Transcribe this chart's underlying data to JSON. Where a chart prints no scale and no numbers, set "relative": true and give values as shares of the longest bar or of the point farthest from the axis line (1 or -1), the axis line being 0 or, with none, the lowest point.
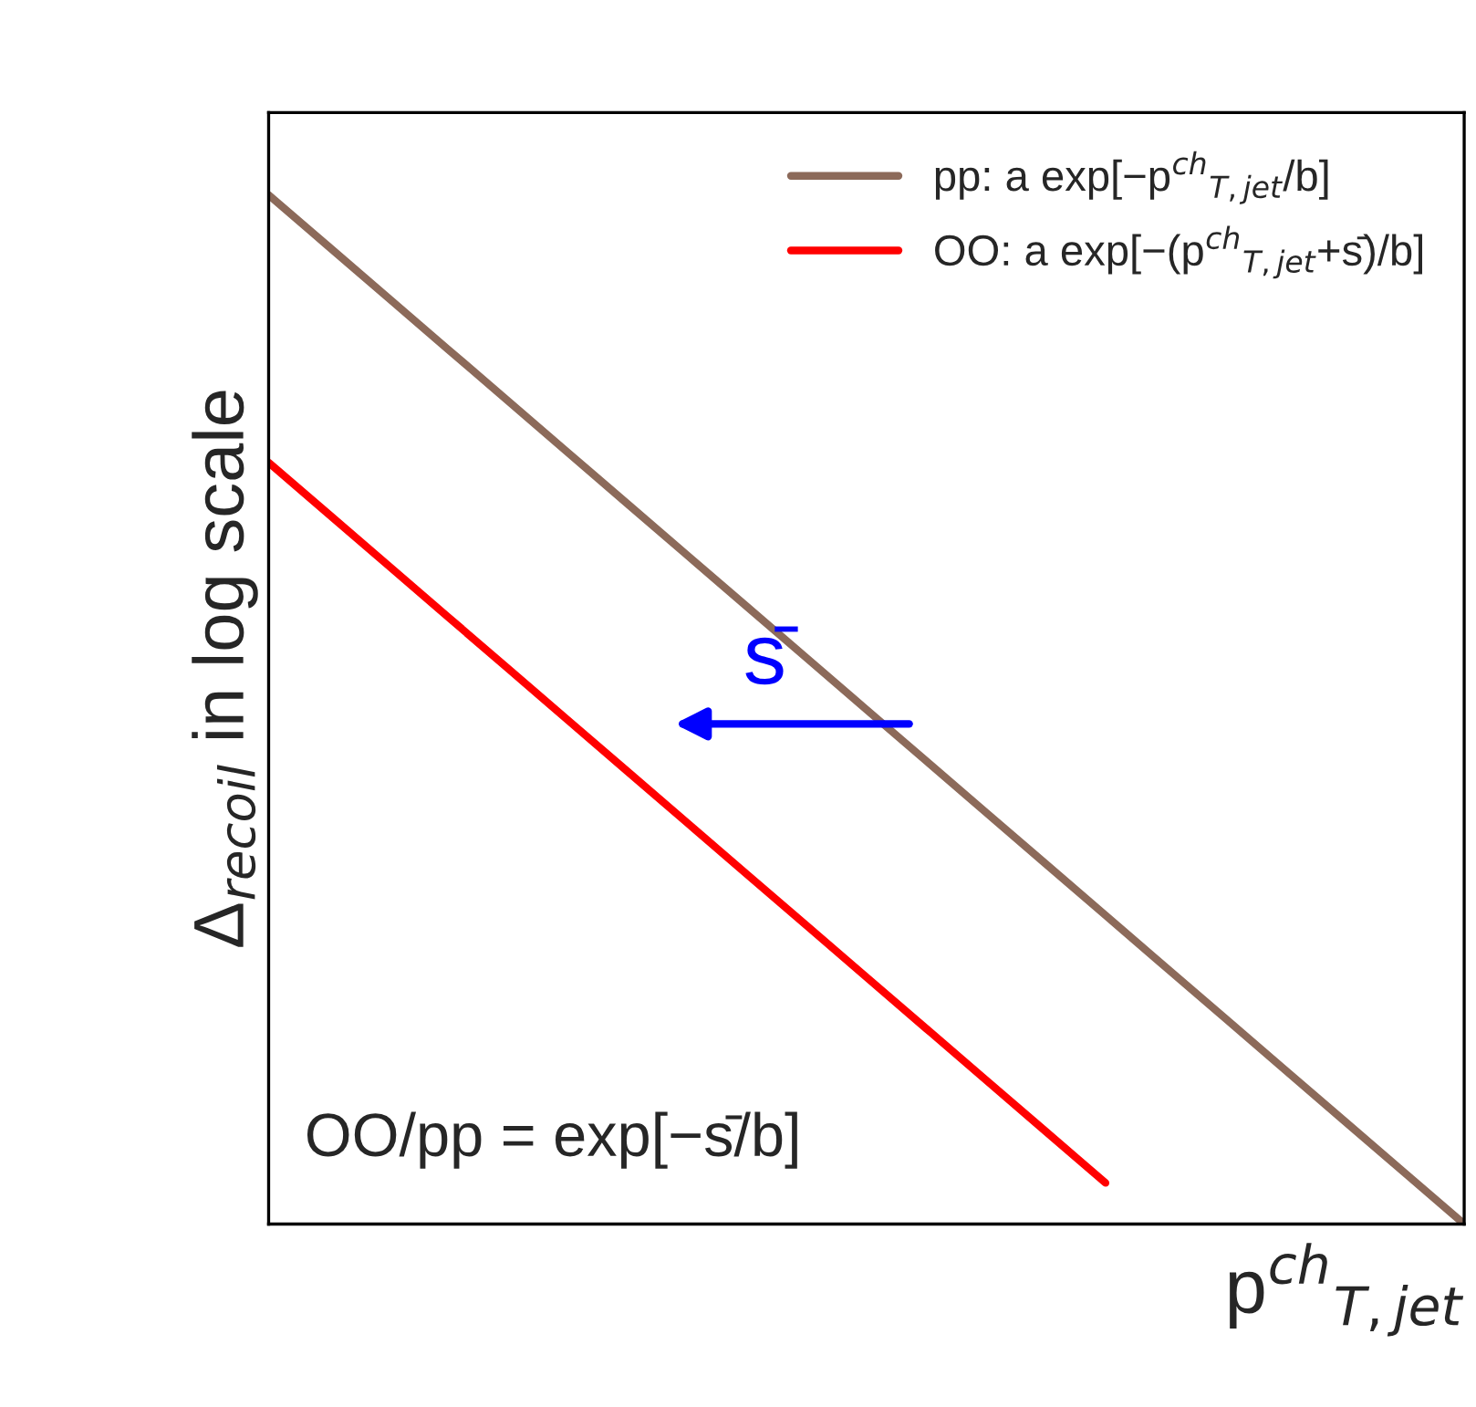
{
  "chart_data": {
    "type": "line",
    "relative": true,
    "xlabel": "p$^{ch}$$_{T,jet}$",
    "ylabel": "Δ$_{recoil}$ in log scale",
    "categories": [
      null,
      null,
      null,
      null,
      null,
      null,
      null,
      null,
      null,
      null,
      null,
      null,
      null,
      null,
      null,
      null,
      null,
      null,
      null,
      null,
      null
    ],
    "series": [
      {
        "name": "pp: a exp[−p$^{ch}$$_{T,jet}$/b]",
        "color": "#8c6a5a",
        "values": [
          1,
          0.95,
          0.9,
          0.85,
          0.8,
          0.75,
          0.7,
          0.65,
          0.6,
          0.55,
          0.5,
          0.45,
          0.4,
          0.35,
          0.3,
          0.25,
          0.2,
          0.15,
          0.1,
          0.05,
          0
        ]
      },
      {
        "name": "OO: a exp[−(p$^{ch}$$_{T,jet}$+s̄)/b]",
        "color": "#ff0000",
        "values": [
          0.74,
          0.69,
          0.64,
          0.59,
          0.54,
          0.49,
          0.44,
          0.39,
          0.34,
          0.29,
          0.24,
          0.19,
          0.14,
          0.09,
          0.04,
          null,
          null,
          null,
          null,
          null,
          null
        ]
      }
    ],
    "annotations": [
      "s̄",
      "OO/pp = exp[−s̄/b]"
    ],
    "legend": "top right",
    "grid": false
  }
}
